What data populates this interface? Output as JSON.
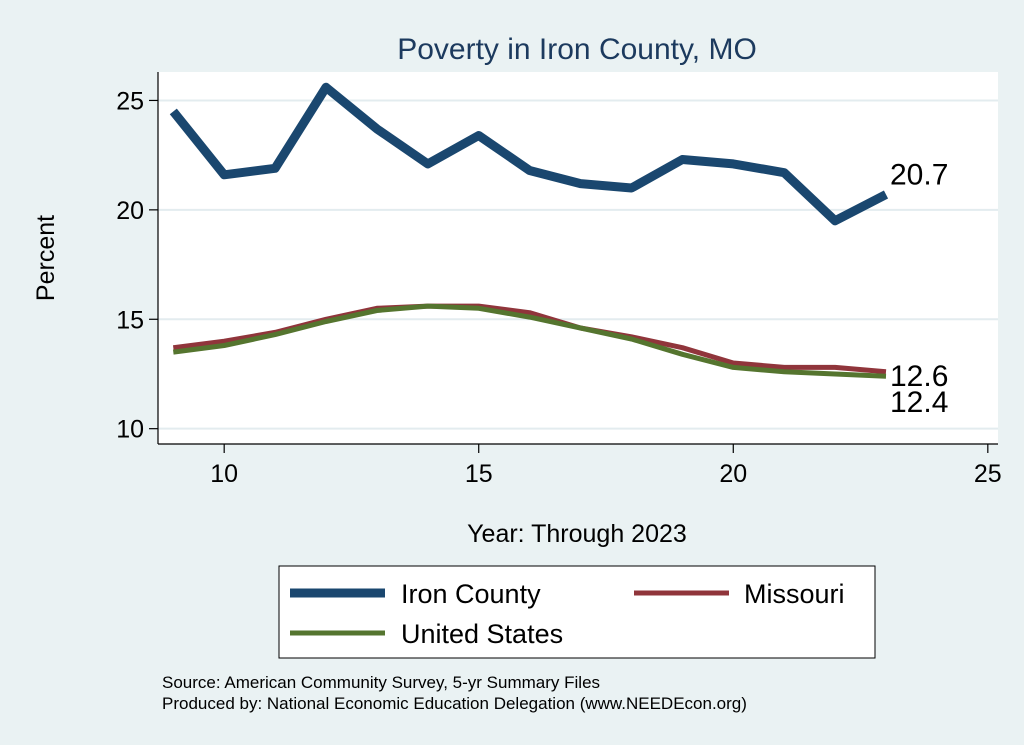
{
  "chart_data": {
    "type": "line",
    "title": "Poverty in Iron County, MO",
    "xlabel": "Year: Through 2023",
    "ylabel": "Percent",
    "xlim": [
      8.7,
      25.2
    ],
    "ylim": [
      9.3,
      26.3
    ],
    "xticks": [
      10,
      15,
      20,
      25
    ],
    "yticks": [
      10,
      15,
      20,
      25
    ],
    "x": [
      9,
      10,
      11,
      12,
      13,
      14,
      15,
      16,
      17,
      18,
      19,
      20,
      21,
      22,
      23
    ],
    "series": [
      {
        "name": "Iron County",
        "color": "#1a476f",
        "values": [
          24.5,
          21.6,
          21.9,
          25.6,
          23.7,
          22.1,
          23.4,
          21.8,
          21.2,
          21.0,
          22.3,
          22.1,
          21.7,
          19.5,
          20.7
        ],
        "end_label": "20.7"
      },
      {
        "name": "Missouri",
        "color": "#90353b",
        "values": [
          13.7,
          14.0,
          14.4,
          15.0,
          15.5,
          15.6,
          15.6,
          15.3,
          14.6,
          14.2,
          13.7,
          13.0,
          12.8,
          12.8,
          12.6
        ],
        "end_label": "12.6"
      },
      {
        "name": "United States",
        "color": "#55752f",
        "values": [
          13.5,
          13.8,
          14.3,
          14.9,
          15.4,
          15.6,
          15.5,
          15.1,
          14.6,
          14.1,
          13.4,
          12.8,
          12.6,
          12.5,
          12.4
        ],
        "end_label": "12.4"
      }
    ],
    "legend": {
      "placement": "bottom",
      "entries": [
        "Iron County",
        "Missouri",
        "United States"
      ]
    },
    "notes": [
      "Source: American Community Survey, 5-yr Summary Files",
      "Produced by: National Economic Education Delegation (www.NEEDEcon.org)"
    ]
  }
}
